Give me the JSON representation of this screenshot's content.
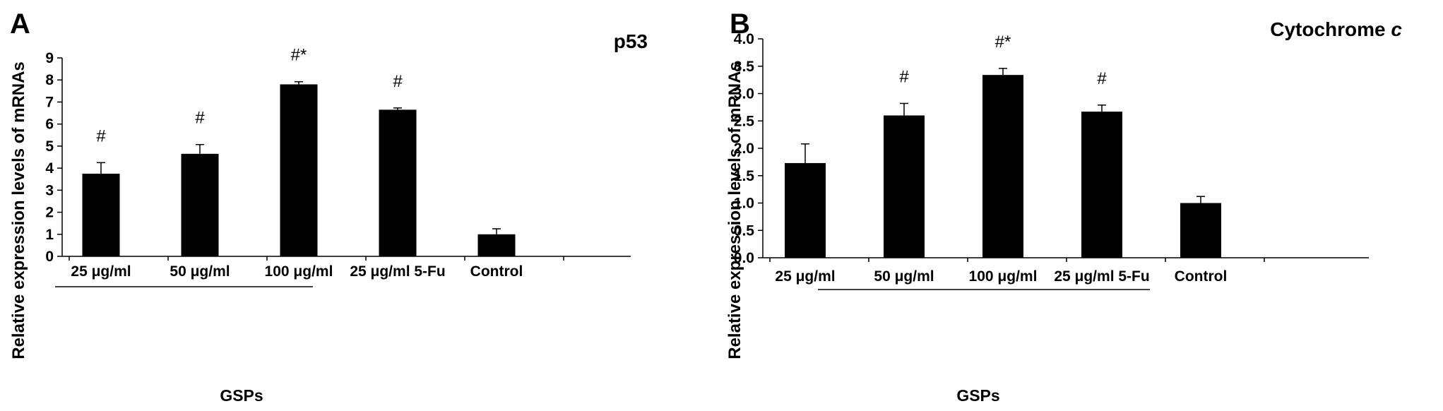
{
  "chart_data": [
    {
      "panel_label": "A",
      "type": "bar",
      "title": "p53",
      "title_emphasis": "",
      "ylabel": "Relative expression levels of mRNAs",
      "categories": [
        "25 μg/ml",
        "50 μg/ml",
        "100 μg/ml",
        "25 μg/ml 5-Fu",
        "Control"
      ],
      "values": [
        3.75,
        4.65,
        7.8,
        6.65,
        1.0
      ],
      "errors": [
        0.5,
        0.42,
        0.12,
        0.08,
        0.25
      ],
      "annotations": [
        "#",
        "#",
        "#*",
        "#",
        ""
      ],
      "ylim": [
        0,
        9
      ],
      "yticks": [
        "0",
        "1",
        "2",
        "3",
        "4",
        "5",
        "6",
        "7",
        "8",
        "9"
      ],
      "group_label": "GSPs",
      "group_span": [
        0,
        2
      ],
      "bar_color": "#000000",
      "grid": false
    },
    {
      "panel_label": "B",
      "type": "bar",
      "title": "Cytochrome ",
      "title_emphasis": "c",
      "ylabel": "Relative expression levels of mRNAs",
      "categories": [
        "25 μg/ml",
        "50 μg/ml",
        "100 μg/ml",
        "25 μg/ml 5-Fu",
        "Control"
      ],
      "values": [
        1.73,
        2.6,
        3.34,
        2.67,
        1.0
      ],
      "errors": [
        0.35,
        0.22,
        0.12,
        0.12,
        0.12
      ],
      "annotations": [
        "",
        "#",
        "#*",
        "#",
        ""
      ],
      "ylim": [
        0,
        4
      ],
      "yticks": [
        "0.0",
        "0.5",
        "1.0",
        "1.5",
        "2.0",
        "2.5",
        "3.0",
        "3.5",
        "4.0"
      ],
      "group_label": "GSPs",
      "group_span": [
        0,
        2
      ],
      "bar_color": "#000000",
      "grid": false
    }
  ]
}
